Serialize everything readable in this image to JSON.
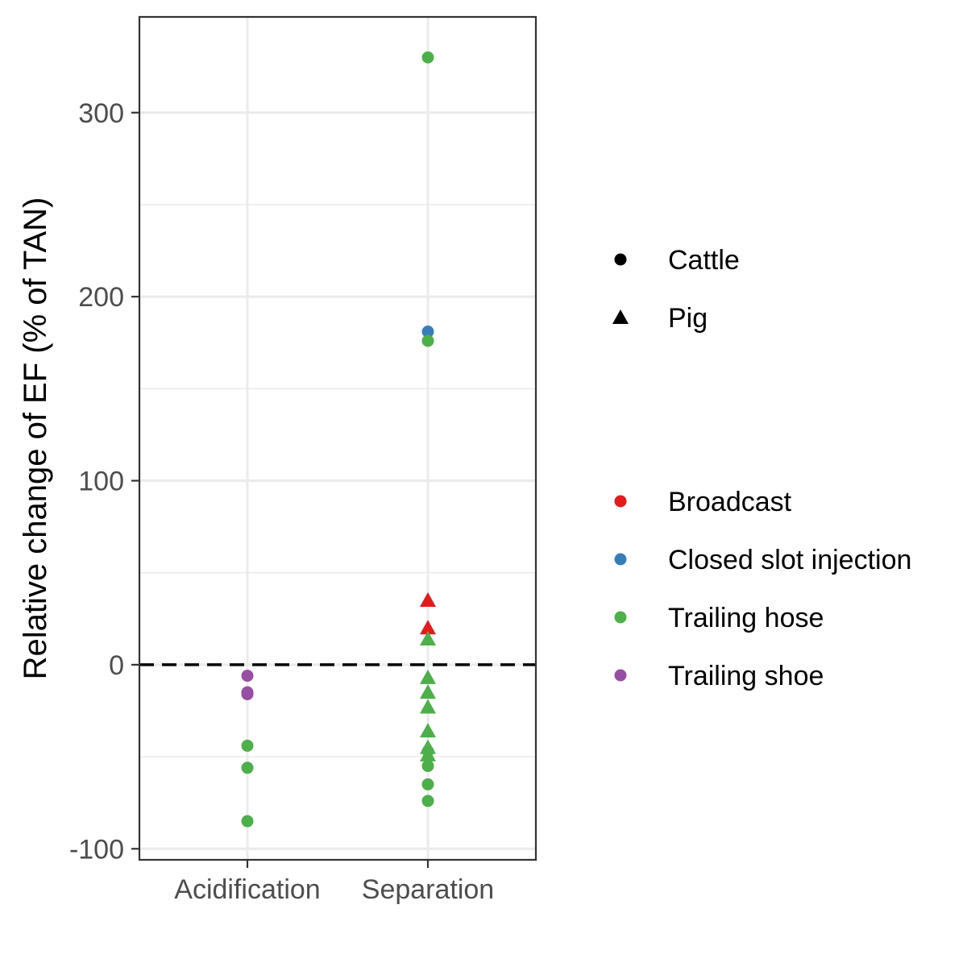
{
  "chart_data": {
    "type": "scatter",
    "title": "",
    "xlabel": "",
    "ylabel": "Relative change of EF (% of TAN)",
    "categories": [
      "Acidification",
      "Separation"
    ],
    "ylim": [
      -106,
      352
    ],
    "yticks": [
      -100,
      0,
      100,
      200,
      300
    ],
    "reference_line": {
      "y": 0,
      "style": "dashed"
    },
    "grid": true,
    "legend_position": "right",
    "shape_legend": [
      {
        "label": "Cattle",
        "shape": "circle"
      },
      {
        "label": "Pig",
        "shape": "triangle"
      }
    ],
    "color_legend": [
      {
        "label": "Broadcast",
        "color": "#e41a1c"
      },
      {
        "label": "Closed slot injection",
        "color": "#377eb8"
      },
      {
        "label": "Trailing hose",
        "color": "#4daf4a"
      },
      {
        "label": "Trailing shoe",
        "color": "#984ea3"
      }
    ],
    "points": [
      {
        "category": "Acidification",
        "y": -6,
        "animal": "Cattle",
        "method": "Trailing shoe"
      },
      {
        "category": "Acidification",
        "y": -15,
        "animal": "Cattle",
        "method": "Trailing shoe"
      },
      {
        "category": "Acidification",
        "y": -16,
        "animal": "Cattle",
        "method": "Trailing shoe"
      },
      {
        "category": "Acidification",
        "y": -44,
        "animal": "Cattle",
        "method": "Trailing hose"
      },
      {
        "category": "Acidification",
        "y": -56,
        "animal": "Cattle",
        "method": "Trailing hose"
      },
      {
        "category": "Acidification",
        "y": -85,
        "animal": "Cattle",
        "method": "Trailing hose"
      },
      {
        "category": "Separation",
        "y": 330,
        "animal": "Cattle",
        "method": "Trailing hose"
      },
      {
        "category": "Separation",
        "y": 181,
        "animal": "Cattle",
        "method": "Closed slot injection"
      },
      {
        "category": "Separation",
        "y": 176,
        "animal": "Cattle",
        "method": "Trailing hose"
      },
      {
        "category": "Separation",
        "y": 35,
        "animal": "Pig",
        "method": "Broadcast"
      },
      {
        "category": "Separation",
        "y": 20,
        "animal": "Pig",
        "method": "Broadcast"
      },
      {
        "category": "Separation",
        "y": 14,
        "animal": "Pig",
        "method": "Trailing hose"
      },
      {
        "category": "Separation",
        "y": -7,
        "animal": "Pig",
        "method": "Trailing hose"
      },
      {
        "category": "Separation",
        "y": -15,
        "animal": "Pig",
        "method": "Trailing hose"
      },
      {
        "category": "Separation",
        "y": -23,
        "animal": "Pig",
        "method": "Trailing hose"
      },
      {
        "category": "Separation",
        "y": -36,
        "animal": "Pig",
        "method": "Trailing hose"
      },
      {
        "category": "Separation",
        "y": -45,
        "animal": "Pig",
        "method": "Trailing hose"
      },
      {
        "category": "Separation",
        "y": -49,
        "animal": "Pig",
        "method": "Trailing hose"
      },
      {
        "category": "Separation",
        "y": -47,
        "animal": "Cattle",
        "method": "Trailing hose"
      },
      {
        "category": "Separation",
        "y": -55,
        "animal": "Cattle",
        "method": "Trailing hose"
      },
      {
        "category": "Separation",
        "y": -65,
        "animal": "Cattle",
        "method": "Trailing hose"
      },
      {
        "category": "Separation",
        "y": -74,
        "animal": "Cattle",
        "method": "Trailing hose"
      }
    ]
  }
}
